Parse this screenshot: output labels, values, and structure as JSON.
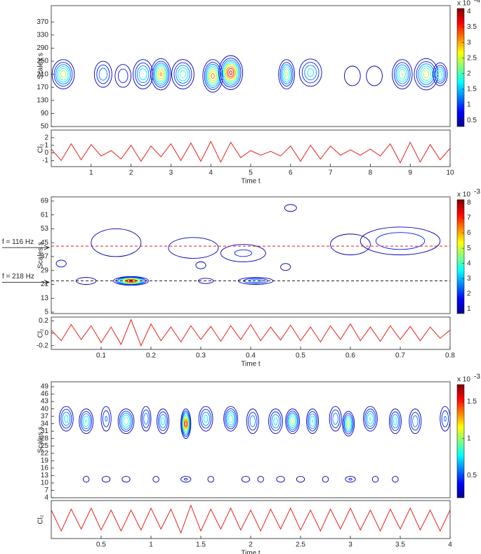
{
  "chart_data": [
    {
      "type": "contour",
      "ylabel": "Scales s",
      "xlim": [
        0,
        10
      ],
      "ylim": [
        50,
        420
      ],
      "yticks": [
        50,
        90,
        130,
        170,
        210,
        250,
        290,
        330,
        370
      ],
      "colorbar": {
        "lim": [
          0.3,
          4.1
        ],
        "ticks": [
          0.5,
          1,
          1.5,
          2,
          2.5,
          3,
          3.5,
          4
        ],
        "label": "x 10",
        "exponent": "-4"
      },
      "blobs": [
        {
          "x": 0.3,
          "s": 210,
          "w": 0.28,
          "h": 45,
          "peak": 2.6
        },
        {
          "x": 1.3,
          "s": 210,
          "w": 0.22,
          "h": 40,
          "peak": 1.6
        },
        {
          "x": 1.8,
          "s": 205,
          "w": 0.2,
          "h": 35,
          "peak": 1.2
        },
        {
          "x": 2.3,
          "s": 210,
          "w": 0.25,
          "h": 45,
          "peak": 2.0
        },
        {
          "x": 2.75,
          "s": 210,
          "w": 0.25,
          "h": 48,
          "peak": 3.2
        },
        {
          "x": 3.3,
          "s": 210,
          "w": 0.28,
          "h": 45,
          "peak": 2.2
        },
        {
          "x": 4.05,
          "s": 205,
          "w": 0.25,
          "h": 50,
          "peak": 3.3
        },
        {
          "x": 4.5,
          "s": 215,
          "w": 0.3,
          "h": 52,
          "peak": 4.0
        },
        {
          "x": 5.9,
          "s": 210,
          "w": 0.2,
          "h": 45,
          "peak": 2.5
        },
        {
          "x": 6.5,
          "s": 215,
          "w": 0.28,
          "h": 42,
          "peak": 1.8
        },
        {
          "x": 7.55,
          "s": 205,
          "w": 0.2,
          "h": 30,
          "peak": 0.7
        },
        {
          "x": 8.1,
          "s": 205,
          "w": 0.2,
          "h": 30,
          "peak": 0.7
        },
        {
          "x": 8.8,
          "s": 210,
          "w": 0.25,
          "h": 45,
          "peak": 2.4
        },
        {
          "x": 9.4,
          "s": 210,
          "w": 0.3,
          "h": 48,
          "peak": 2.6
        },
        {
          "x": 9.75,
          "s": 210,
          "w": 0.18,
          "h": 35,
          "peak": 2.2
        }
      ]
    },
    {
      "type": "line",
      "ylabel": "Cl₂",
      "xlabel": "Time t",
      "color": "#e8201a",
      "xlim": [
        0,
        10
      ],
      "ylim": [
        -1.8,
        3
      ],
      "xticks": [
        1,
        2,
        3,
        4,
        5,
        6,
        7,
        8,
        9,
        10
      ],
      "yticks": [
        -1,
        0,
        1,
        2
      ],
      "x": [
        0,
        0.25,
        0.5,
        0.75,
        1,
        1.25,
        1.5,
        1.75,
        2,
        2.25,
        2.5,
        2.75,
        3,
        3.25,
        3.5,
        3.75,
        4,
        4.25,
        4.5,
        4.75,
        5,
        5.25,
        5.5,
        5.75,
        6,
        6.25,
        6.5,
        6.75,
        7,
        7.25,
        7.5,
        7.75,
        8,
        8.25,
        8.5,
        8.75,
        9,
        9.25,
        9.5,
        9.75,
        10
      ],
      "values": [
        0.5,
        -1.0,
        1.2,
        -0.9,
        1.1,
        -0.4,
        0.3,
        -0.8,
        1.0,
        -1.1,
        0.9,
        -0.5,
        1.2,
        -1.0,
        1.3,
        -1.1,
        1.5,
        -1.2,
        1.4,
        -0.6,
        0.3,
        -0.3,
        0.2,
        -0.4,
        0.9,
        -1.1,
        1.0,
        -0.8,
        0.9,
        -0.3,
        0.4,
        -0.3,
        0.5,
        -0.4,
        1.2,
        -1.3,
        1.4,
        -1.2,
        1.1,
        -0.9,
        0.6
      ]
    },
    {
      "type": "contour",
      "ylabel": "Scales s",
      "xlim": [
        0,
        0.8
      ],
      "ylim": [
        4.2,
        71.4
      ],
      "yticks": [
        5,
        13,
        21,
        29,
        37,
        45,
        53,
        61,
        69
      ],
      "colorbar": {
        "lim": [
          0.7,
          8.2
        ],
        "ticks": [
          1,
          2,
          3,
          4,
          5,
          6,
          7,
          8
        ],
        "label": "x 10",
        "exponent": "-3"
      },
      "hlines": [
        {
          "y": 43,
          "color": "#e02020",
          "label": "f = 116 Hz"
        },
        {
          "y": 23,
          "color": "#222222",
          "label": "f = 218 Hz"
        }
      ],
      "blobs": [
        {
          "x": 0.07,
          "s": 23,
          "w": 0.02,
          "h": 2,
          "peak": 1.5
        },
        {
          "x": 0.16,
          "s": 23,
          "w": 0.035,
          "h": 2.5,
          "peak": 8
        },
        {
          "x": 0.31,
          "s": 23,
          "w": 0.015,
          "h": 1.5,
          "peak": 1.5
        },
        {
          "x": 0.41,
          "s": 23,
          "w": 0.035,
          "h": 2,
          "peak": 3
        },
        {
          "x": 0.13,
          "s": 45,
          "w": 0.05,
          "h": 8,
          "peak": 1.5
        },
        {
          "x": 0.285,
          "s": 42,
          "w": 0.05,
          "h": 6,
          "peak": 1.6
        },
        {
          "x": 0.385,
          "s": 39,
          "w": 0.045,
          "h": 5,
          "peak": 2
        },
        {
          "x": 0.48,
          "s": 65,
          "w": 0.012,
          "h": 2,
          "peak": 0.9
        },
        {
          "x": 0.6,
          "s": 44,
          "w": 0.04,
          "h": 6,
          "peak": 1.2
        },
        {
          "x": 0.7,
          "s": 46,
          "w": 0.08,
          "h": 8,
          "peak": 2.5
        },
        {
          "x": 0.3,
          "s": 32,
          "w": 0.01,
          "h": 2,
          "peak": 0.8
        },
        {
          "x": 0.02,
          "s": 33,
          "w": 0.01,
          "h": 2,
          "peak": 0.8
        },
        {
          "x": 0.47,
          "s": 31,
          "w": 0.01,
          "h": 2,
          "peak": 0.8
        }
      ]
    },
    {
      "type": "line",
      "ylabel": "Cl₂",
      "xlabel": "Time t",
      "color": "#e8201a",
      "xlim": [
        0,
        0.8
      ],
      "ylim": [
        -0.26,
        0.26
      ],
      "xticks": [
        0.1,
        0.2,
        0.3,
        0.4,
        0.5,
        0.6,
        0.7,
        0.8
      ],
      "yticks": [
        -0.2,
        0,
        0.2
      ],
      "x": [
        0,
        0.02,
        0.04,
        0.06,
        0.08,
        0.1,
        0.12,
        0.14,
        0.16,
        0.18,
        0.2,
        0.22,
        0.24,
        0.26,
        0.28,
        0.3,
        0.32,
        0.34,
        0.36,
        0.38,
        0.4,
        0.42,
        0.44,
        0.46,
        0.48,
        0.5,
        0.52,
        0.54,
        0.56,
        0.58,
        0.6,
        0.62,
        0.64,
        0.66,
        0.68,
        0.7,
        0.72,
        0.74,
        0.76,
        0.78,
        0.8
      ],
      "values": [
        0.05,
        -0.12,
        0.14,
        -0.1,
        0.12,
        -0.15,
        0.1,
        -0.18,
        0.22,
        -0.2,
        0.15,
        -0.12,
        0.1,
        -0.14,
        0.12,
        -0.1,
        0.11,
        -0.13,
        0.12,
        -0.1,
        0.14,
        -0.12,
        0.1,
        -0.11,
        0.13,
        -0.12,
        0.1,
        -0.14,
        0.12,
        -0.1,
        0.15,
        -0.12,
        0.1,
        -0.13,
        0.12,
        -0.1,
        0.11,
        -0.12,
        0.1,
        -0.08,
        0.05
      ]
    },
    {
      "type": "contour",
      "ylabel": "Scales s",
      "xlim": [
        0,
        4
      ],
      "ylim": [
        4,
        51
      ],
      "yticks": [
        4,
        7,
        10,
        13,
        16,
        19,
        22,
        25,
        28,
        31,
        34,
        37,
        40,
        43,
        46,
        49
      ],
      "colorbar": {
        "lim": [
          0.2,
          1.73
        ],
        "ticks": [
          0.5,
          1,
          1.5
        ],
        "label": "x 10",
        "exponent": "-3"
      },
      "blobs": [
        {
          "x": 0.15,
          "s": 36,
          "w": 0.07,
          "h": 5,
          "peak": 0.8
        },
        {
          "x": 0.35,
          "s": 35,
          "w": 0.07,
          "h": 5,
          "peak": 0.9
        },
        {
          "x": 0.55,
          "s": 36,
          "w": 0.05,
          "h": 5,
          "peak": 0.6
        },
        {
          "x": 0.75,
          "s": 35,
          "w": 0.08,
          "h": 5,
          "peak": 1.0
        },
        {
          "x": 0.95,
          "s": 36,
          "w": 0.05,
          "h": 5,
          "peak": 0.7
        },
        {
          "x": 1.12,
          "s": 35,
          "w": 0.06,
          "h": 5,
          "peak": 0.8
        },
        {
          "x": 1.35,
          "s": 34,
          "w": 0.05,
          "h": 6,
          "peak": 1.6
        },
        {
          "x": 1.55,
          "s": 36,
          "w": 0.07,
          "h": 5,
          "peak": 0.8
        },
        {
          "x": 1.8,
          "s": 36,
          "w": 0.07,
          "h": 5,
          "peak": 1.0
        },
        {
          "x": 2.02,
          "s": 35,
          "w": 0.06,
          "h": 5,
          "peak": 0.7
        },
        {
          "x": 2.25,
          "s": 35,
          "w": 0.07,
          "h": 5,
          "peak": 0.8
        },
        {
          "x": 2.42,
          "s": 35,
          "w": 0.07,
          "h": 5,
          "peak": 1.1
        },
        {
          "x": 2.62,
          "s": 35,
          "w": 0.06,
          "h": 5,
          "peak": 0.9
        },
        {
          "x": 2.85,
          "s": 36,
          "w": 0.06,
          "h": 5,
          "peak": 0.7
        },
        {
          "x": 2.98,
          "s": 34,
          "w": 0.06,
          "h": 5,
          "peak": 1.1
        },
        {
          "x": 3.2,
          "s": 36,
          "w": 0.07,
          "h": 5,
          "peak": 0.9
        },
        {
          "x": 3.45,
          "s": 35,
          "w": 0.06,
          "h": 5,
          "peak": 0.8
        },
        {
          "x": 3.65,
          "s": 35,
          "w": 0.06,
          "h": 5,
          "peak": 0.7
        },
        {
          "x": 3.95,
          "s": 36,
          "w": 0.05,
          "h": 5,
          "peak": 0.6
        },
        {
          "x": 0.35,
          "s": 11.5,
          "w": 0.03,
          "h": 1.2,
          "peak": 0.35
        },
        {
          "x": 0.55,
          "s": 11.5,
          "w": 0.04,
          "h": 1.2,
          "peak": 0.35
        },
        {
          "x": 0.75,
          "s": 11.5,
          "w": 0.04,
          "h": 1.2,
          "peak": 0.4
        },
        {
          "x": 1.05,
          "s": 11.5,
          "w": 0.03,
          "h": 1.2,
          "peak": 0.35
        },
        {
          "x": 1.35,
          "s": 11.5,
          "w": 0.05,
          "h": 1.2,
          "peak": 0.45
        },
        {
          "x": 1.6,
          "s": 11.5,
          "w": 0.03,
          "h": 1.2,
          "peak": 0.35
        },
        {
          "x": 1.95,
          "s": 11.5,
          "w": 0.04,
          "h": 1.2,
          "peak": 0.4
        },
        {
          "x": 2.1,
          "s": 11.5,
          "w": 0.03,
          "h": 1.2,
          "peak": 0.35
        },
        {
          "x": 2.3,
          "s": 11.5,
          "w": 0.04,
          "h": 1.2,
          "peak": 0.35
        },
        {
          "x": 2.5,
          "s": 11.5,
          "w": 0.04,
          "h": 1.2,
          "peak": 0.4
        },
        {
          "x": 2.75,
          "s": 11.5,
          "w": 0.03,
          "h": 1.2,
          "peak": 0.35
        },
        {
          "x": 3.0,
          "s": 11.5,
          "w": 0.05,
          "h": 1.2,
          "peak": 0.45
        },
        {
          "x": 3.25,
          "s": 11.5,
          "w": 0.03,
          "h": 1.2,
          "peak": 0.35
        },
        {
          "x": 3.45,
          "s": 11.5,
          "w": 0.03,
          "h": 1.2,
          "peak": 0.35
        }
      ]
    },
    {
      "type": "line",
      "ylabel": "Cl₂",
      "xlabel": "Time t",
      "color": "#e8201a",
      "xlim": [
        0,
        4
      ],
      "ylim": [
        -1,
        1
      ],
      "xticks": [
        0.5,
        1,
        1.5,
        2,
        2.5,
        3,
        3.5,
        4
      ],
      "x": [
        0,
        0.1,
        0.2,
        0.3,
        0.4,
        0.5,
        0.6,
        0.7,
        0.8,
        0.9,
        1,
        1.1,
        1.2,
        1.3,
        1.4,
        1.5,
        1.6,
        1.7,
        1.8,
        1.9,
        2,
        2.1,
        2.2,
        2.3,
        2.4,
        2.5,
        2.6,
        2.7,
        2.8,
        2.9,
        3,
        3.1,
        3.2,
        3.3,
        3.4,
        3.5,
        3.6,
        3.7,
        3.8,
        3.9,
        4
      ],
      "values": [
        0.5,
        -0.6,
        0.55,
        -0.5,
        0.6,
        -0.55,
        0.5,
        -0.6,
        0.5,
        -0.55,
        0.6,
        -0.5,
        0.55,
        -0.7,
        0.75,
        -0.6,
        0.55,
        -0.5,
        0.6,
        -0.55,
        0.5,
        -0.6,
        0.55,
        -0.5,
        0.6,
        -0.55,
        0.5,
        -0.6,
        0.55,
        -0.5,
        0.6,
        -0.55,
        0.5,
        -0.6,
        0.55,
        -0.5,
        0.6,
        -0.55,
        0.5,
        -0.6,
        0.5
      ]
    }
  ]
}
